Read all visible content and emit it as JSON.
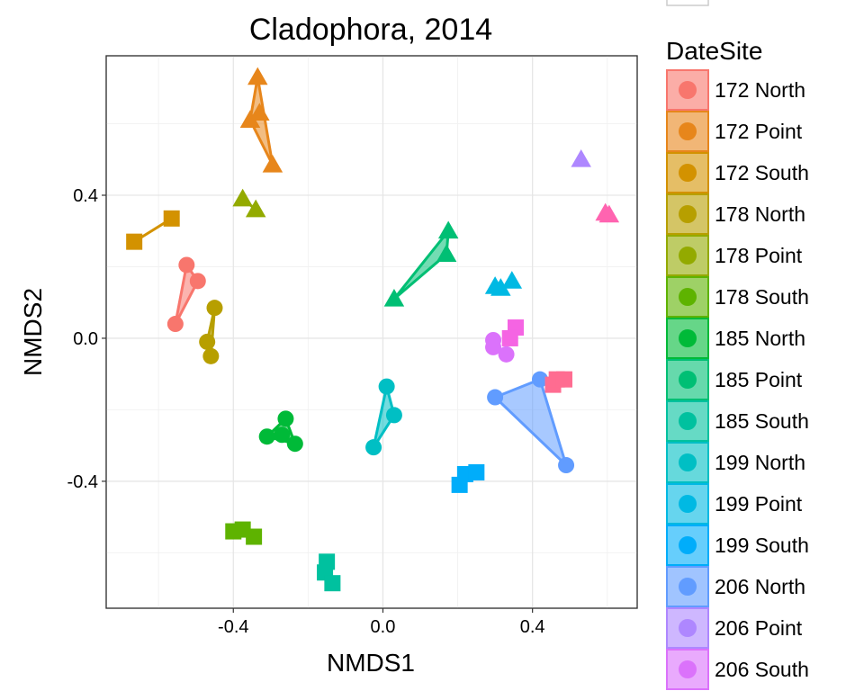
{
  "chart_data": {
    "type": "scatter",
    "title": "Cladophora, 2014",
    "xlabel": "NMDS1",
    "ylabel": "NMDS2",
    "xlim": [
      -0.74,
      0.68
    ],
    "ylim": [
      -0.755,
      0.79
    ],
    "x_ticks": [
      -0.4,
      0.0,
      0.4
    ],
    "y_ticks": [
      -0.4,
      0.0,
      0.4
    ],
    "x_tick_labels": [
      "-0.4",
      "0.0",
      "0.4"
    ],
    "y_tick_labels": [
      "-0.4",
      "0.0",
      "0.4"
    ],
    "grid": true,
    "legend_title": "DateSite",
    "legend_position": "right",
    "shape_encoding": "Date: 172 square, 178 triangle, 185 circle (series ordering cycles Point/North/South)",
    "series": [
      {
        "name": "172 North",
        "color": "#F8766D",
        "shape": "circle",
        "hull": true,
        "points": [
          [
            -0.555,
            0.04
          ],
          [
            -0.525,
            0.205
          ],
          [
            -0.495,
            0.16
          ]
        ]
      },
      {
        "name": "172 Point",
        "color": "#E7861B",
        "shape": "triangle",
        "hull": true,
        "points": [
          [
            -0.335,
            0.73
          ],
          [
            -0.355,
            0.61
          ],
          [
            -0.295,
            0.485
          ],
          [
            -0.33,
            0.63
          ]
        ]
      },
      {
        "name": "172 South",
        "color": "#D39200",
        "shape": "square",
        "hull": true,
        "points": [
          [
            -0.665,
            0.27
          ],
          [
            -0.565,
            0.335
          ]
        ]
      },
      {
        "name": "178 North",
        "color": "#B79F00",
        "shape": "circle",
        "hull": true,
        "points": [
          [
            -0.47,
            -0.01
          ],
          [
            -0.46,
            -0.05
          ],
          [
            -0.45,
            0.085
          ]
        ]
      },
      {
        "name": "178 Point",
        "color": "#93AA00",
        "shape": "triangle",
        "hull": true,
        "points": [
          [
            -0.375,
            0.39
          ],
          [
            -0.34,
            0.36
          ]
        ]
      },
      {
        "name": "178 South",
        "color": "#5EB300",
        "shape": "square",
        "hull": false,
        "points": [
          [
            -0.4,
            -0.54
          ],
          [
            -0.375,
            -0.535
          ],
          [
            -0.345,
            -0.555
          ]
        ]
      },
      {
        "name": "185 North",
        "color": "#00BA38",
        "shape": "circle",
        "hull": true,
        "points": [
          [
            -0.31,
            -0.275
          ],
          [
            -0.26,
            -0.225
          ],
          [
            -0.235,
            -0.295
          ],
          [
            -0.27,
            -0.27
          ]
        ]
      },
      {
        "name": "185 Point",
        "color": "#00BF74",
        "shape": "triangle",
        "hull": true,
        "points": [
          [
            0.03,
            0.11
          ],
          [
            0.175,
            0.3
          ],
          [
            0.17,
            0.235
          ]
        ]
      },
      {
        "name": "185 South",
        "color": "#00C19F",
        "shape": "square",
        "hull": false,
        "points": [
          [
            -0.15,
            -0.625
          ],
          [
            -0.155,
            -0.655
          ],
          [
            -0.135,
            -0.685
          ]
        ]
      },
      {
        "name": "199 North",
        "color": "#00BFC4",
        "shape": "circle",
        "hull": true,
        "points": [
          [
            -0.025,
            -0.305
          ],
          [
            0.01,
            -0.135
          ],
          [
            0.03,
            -0.215
          ]
        ]
      },
      {
        "name": "199 Point",
        "color": "#00B9E3",
        "shape": "triangle",
        "hull": false,
        "points": [
          [
            0.3,
            0.145
          ],
          [
            0.345,
            0.16
          ],
          [
            0.315,
            0.14
          ]
        ]
      },
      {
        "name": "199 South",
        "color": "#00ADFA",
        "shape": "square",
        "hull": false,
        "points": [
          [
            0.205,
            -0.41
          ],
          [
            0.22,
            -0.38
          ],
          [
            0.25,
            -0.375
          ]
        ]
      },
      {
        "name": "206 North",
        "color": "#619CFF",
        "shape": "circle",
        "hull": true,
        "points": [
          [
            0.3,
            -0.165
          ],
          [
            0.42,
            -0.115
          ],
          [
            0.49,
            -0.355
          ]
        ]
      },
      {
        "name": "206 Point",
        "color": "#AE87FF",
        "shape": "triangle",
        "hull": false,
        "points": [
          [
            0.53,
            0.5
          ]
        ]
      },
      {
        "name": "206 South",
        "color": "#DB72FB",
        "shape": "circle",
        "hull": false,
        "points": [
          [
            0.295,
            -0.005
          ],
          [
            0.295,
            -0.025
          ],
          [
            0.33,
            -0.045
          ]
        ]
      },
      {
        "name": "",
        "color": "#F564E3",
        "shape": "square",
        "hull": false,
        "points": [
          [
            0.355,
            0.03
          ],
          [
            0.34,
            0.0
          ]
        ]
      },
      {
        "name": "",
        "color": "#FF64B0",
        "shape": "triangle",
        "hull": false,
        "points": [
          [
            0.595,
            0.35
          ],
          [
            0.605,
            0.345
          ]
        ]
      },
      {
        "name": "",
        "color": "#FF6C91",
        "shape": "square",
        "hull": false,
        "points": [
          [
            0.455,
            -0.13
          ],
          [
            0.465,
            -0.115
          ],
          [
            0.485,
            -0.115
          ]
        ]
      }
    ]
  }
}
